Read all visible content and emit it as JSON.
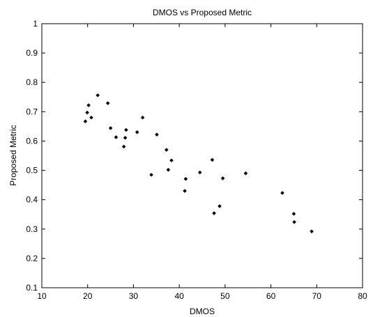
{
  "chart_data": {
    "type": "scatter",
    "title": "DMOS vs Proposed Metric",
    "xlabel": "DMOS",
    "ylabel": "Proposed Metric",
    "xlim": [
      10,
      80
    ],
    "ylim": [
      0.1,
      1
    ],
    "xticks": [
      10,
      20,
      30,
      40,
      50,
      60,
      70,
      80
    ],
    "yticks": [
      0.1,
      0.2,
      0.3,
      0.4,
      0.5,
      0.6,
      0.7,
      0.8,
      0.9,
      1
    ],
    "ytick_labels": [
      "0.1",
      "0.2",
      "0.3",
      "0.4",
      "0.5",
      "0.6",
      "0.7",
      "0.8",
      "0.9",
      "1"
    ],
    "grid": false,
    "marker": "diamond",
    "marker_color": "#000000",
    "points": [
      {
        "x": 19.5,
        "y": 0.667
      },
      {
        "x": 19.9,
        "y": 0.697
      },
      {
        "x": 20.2,
        "y": 0.722
      },
      {
        "x": 20.8,
        "y": 0.68
      },
      {
        "x": 22.2,
        "y": 0.756
      },
      {
        "x": 24.4,
        "y": 0.729
      },
      {
        "x": 25.0,
        "y": 0.644
      },
      {
        "x": 26.2,
        "y": 0.613
      },
      {
        "x": 27.9,
        "y": 0.581
      },
      {
        "x": 28.2,
        "y": 0.611
      },
      {
        "x": 28.4,
        "y": 0.638
      },
      {
        "x": 30.8,
        "y": 0.63
      },
      {
        "x": 32.0,
        "y": 0.68
      },
      {
        "x": 33.9,
        "y": 0.485
      },
      {
        "x": 35.1,
        "y": 0.622
      },
      {
        "x": 37.2,
        "y": 0.57
      },
      {
        "x": 37.6,
        "y": 0.502
      },
      {
        "x": 38.3,
        "y": 0.534
      },
      {
        "x": 41.2,
        "y": 0.43
      },
      {
        "x": 41.4,
        "y": 0.471
      },
      {
        "x": 44.5,
        "y": 0.493
      },
      {
        "x": 47.2,
        "y": 0.536
      },
      {
        "x": 47.6,
        "y": 0.354
      },
      {
        "x": 48.8,
        "y": 0.378
      },
      {
        "x": 49.5,
        "y": 0.473
      },
      {
        "x": 54.5,
        "y": 0.49
      },
      {
        "x": 62.5,
        "y": 0.423
      },
      {
        "x": 65.0,
        "y": 0.352
      },
      {
        "x": 65.1,
        "y": 0.324
      },
      {
        "x": 68.9,
        "y": 0.292
      }
    ]
  }
}
